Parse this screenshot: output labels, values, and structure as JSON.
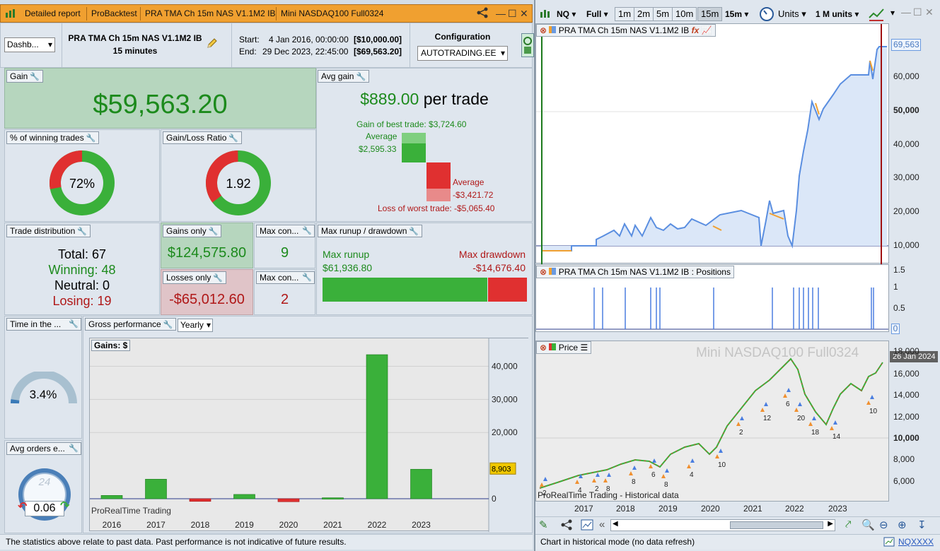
{
  "left_tabs": {
    "t1": "Detailed report",
    "t2": "ProBacktest",
    "t3": "PRA TMA Ch 15m NAS V1.1M2 IB",
    "t4": "Mini NASDAQ100 Full0324"
  },
  "header": {
    "dash": "Dashb...",
    "system_name": "PRA TMA Ch 15m NAS V1.1M2 IB",
    "timeframe": "15 minutes",
    "start_label": "Start:",
    "start_value": "4 Jan 2016, 00:00:00",
    "start_capital": "[$10,000.00]",
    "end_label": "End:",
    "end_value": "29 Dec 2023, 22:45:00",
    "end_capital": "[$69,563.20]",
    "config_label": "Configuration",
    "config_value": "AUTOTRADING.EE"
  },
  "gain": {
    "label": "Gain",
    "value": "$59,563.20"
  },
  "avg_gain": {
    "label": "Avg gain",
    "value": "$889.00",
    "suffix": "per trade",
    "best": "Gain of best trade: $3,724.60",
    "avg_pos_label": "Average",
    "avg_pos_value": "$2,595.33",
    "avg_neg_label": "Average",
    "avg_neg_value": "-$3,421.72",
    "worst": "Loss of worst trade: -$5,065.40"
  },
  "winning": {
    "label": "% of winning trades",
    "value": "72%"
  },
  "ratio": {
    "label": "Gain/Loss Ratio",
    "value": "1.92"
  },
  "distribution": {
    "label": "Trade distribution",
    "total": "Total: 67",
    "winning": "Winning: 48",
    "neutral": "Neutral: 0",
    "losing": "Losing: 19"
  },
  "gains_only": {
    "label": "Gains only",
    "value": "$124,575.80"
  },
  "losses_only": {
    "label": "Losses only",
    "value": "-$65,012.60"
  },
  "max_con_1": {
    "label": "Max con...",
    "value": "9"
  },
  "max_con_2": {
    "label": "Max con...",
    "value": "2"
  },
  "runup": {
    "label": "Max runup / drawdown",
    "runup_label": "Max runup",
    "runup_value": "$61,936.80",
    "drawdown_label": "Max drawdown",
    "drawdown_value": "-$14,676.40"
  },
  "time_in": {
    "label": "Time in the ...",
    "value": "3.4%"
  },
  "avg_orders": {
    "label": "Avg orders e...",
    "value": "0.06",
    "clock": "24"
  },
  "gross": {
    "label": "Gross performance",
    "period": "Yearly",
    "chart_title": "Gains: $",
    "watermark": "ProRealTime Trading",
    "last_value_tag": "8,903"
  },
  "footer_left": "The statistics above relate to past data. Past performance is not indicative of future results.",
  "right_toolbar": {
    "symbol": "NQ",
    "range": "Full",
    "tf": [
      "1m",
      "2m",
      "5m",
      "10m",
      "15m"
    ],
    "tf_selected": "15m",
    "units": "Units",
    "units_size": "1 M units"
  },
  "equity_panel": {
    "label": "PRA TMA Ch 15m NAS V1.1M2 IB",
    "last": "69,563",
    "y_ticks": [
      "60,000",
      "50,000",
      "40,000",
      "30,000",
      "20,000",
      "10,000"
    ]
  },
  "positions_panel": {
    "label": "PRA TMA Ch 15m NAS V1.1M2 IB : Positions",
    "y_ticks": [
      "1.5",
      "1",
      "0.5",
      "0"
    ]
  },
  "price_panel": {
    "label": "Price",
    "watermark": "Mini NASDAQ100 Full0324",
    "date_tag": "26 Jan 2024",
    "y_ticks": [
      "18,000",
      "16,000",
      "14,000",
      "12,000",
      "10,000",
      "8,000",
      "6,000"
    ],
    "footer": "ProRealTime Trading - Historical data",
    "trade_labels": [
      "2",
      "4",
      "2",
      "8",
      "8",
      "6",
      "8",
      "4",
      "10",
      "2",
      "12",
      "6",
      "20",
      "18",
      "14",
      "10"
    ]
  },
  "x_years_right": [
    "2017",
    "2018",
    "2019",
    "2020",
    "2021",
    "2022",
    "2023"
  ],
  "footer_right": "Chart in historical mode (no data refresh)",
  "footer_link": "NQXXXX",
  "chart_data": {
    "type": "bar",
    "title": "Gains: $",
    "categories": [
      "2016",
      "2017",
      "2018",
      "2019",
      "2020",
      "2021",
      "2022",
      "2023"
    ],
    "values": [
      1000,
      5900,
      -800,
      1300,
      -900,
      300,
      43500,
      8903
    ],
    "ylim": [
      -5000,
      47000
    ],
    "y_ticks": [
      "40,000",
      "30,000",
      "20,000",
      "0"
    ],
    "colors": {
      "positive": "#3ab03a",
      "negative": "#e03030"
    }
  }
}
